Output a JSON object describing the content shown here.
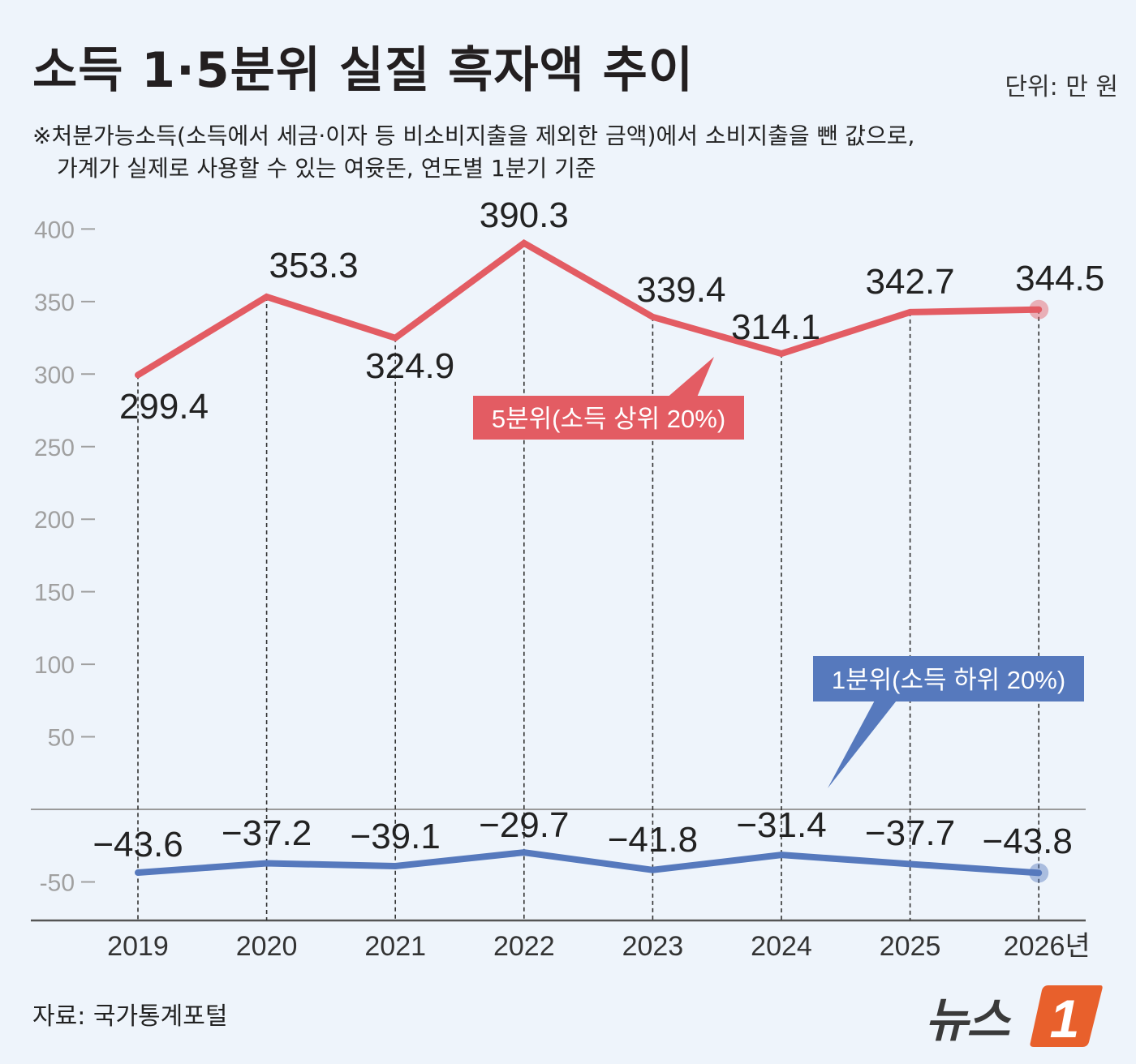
{
  "header": {
    "title": "소득 1·5분위 실질 흑자액 추이",
    "unit": "단위: 만 원",
    "note_line1": "※처분가능소득(소득에서 세금·이자 등 비소비지출을 제외한 금액)에서 소비지출을 뺀 값으로,",
    "note_line2": "가계가 실제로 사용할 수 있는 여윳돈, 연도별 1분기 기준"
  },
  "footer": {
    "source": "자료: 국가통계포털",
    "logo_text": "뉴스",
    "logo_badge": "1"
  },
  "colors": {
    "top": "#e35c63",
    "bottom": "#5679bd",
    "axis": "#888888",
    "tick_label": "#a0a0a0"
  },
  "chart_data": {
    "type": "line",
    "categories": [
      "2019",
      "2020",
      "2021",
      "2022",
      "2023",
      "2024",
      "2025",
      "2026년"
    ],
    "y_ticks": [
      "400",
      "350",
      "300",
      "250",
      "200",
      "150",
      "100",
      "50",
      "-50"
    ],
    "ylim": [
      -50,
      400
    ],
    "series": [
      {
        "name": "5분위(소득 상위 20%)",
        "values": [
          299.4,
          353.3,
          324.9,
          390.3,
          339.4,
          314.1,
          342.7,
          344.5
        ],
        "labels": [
          "299.4",
          "353.3",
          "324.9",
          "390.3",
          "339.4",
          "314.1",
          "342.7",
          "344.5"
        ]
      },
      {
        "name": "1분위(소득 하위 20%)",
        "values": [
          -43.6,
          -37.2,
          -39.1,
          -29.7,
          -41.8,
          -31.4,
          -37.7,
          -43.8
        ],
        "labels": [
          "−43.6",
          "−37.2",
          "−39.1",
          "−29.7",
          "−41.8",
          "−31.4",
          "−37.7",
          "−43.8"
        ]
      }
    ]
  }
}
